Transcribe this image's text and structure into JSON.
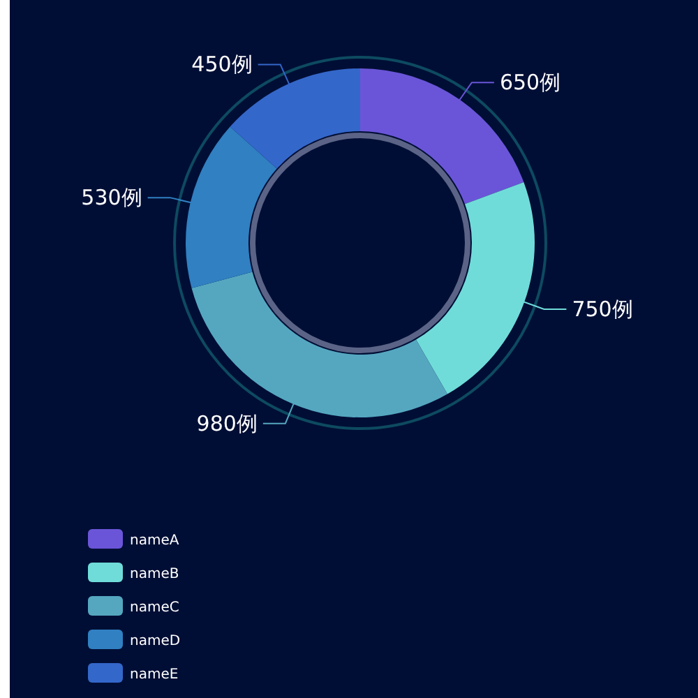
{
  "chart_data": {
    "type": "donut",
    "categories": [
      "nameA",
      "nameB",
      "nameC",
      "nameD",
      "nameE"
    ],
    "values": [
      650,
      750,
      980,
      530,
      450
    ],
    "value_labels": [
      "650例",
      "750例",
      "980例",
      "530例",
      "450例"
    ],
    "colors": [
      "#6a55d8",
      "#70dcd9",
      "#55a7c0",
      "#3080c2",
      "#3467ca"
    ],
    "legend": "bottom left"
  }
}
